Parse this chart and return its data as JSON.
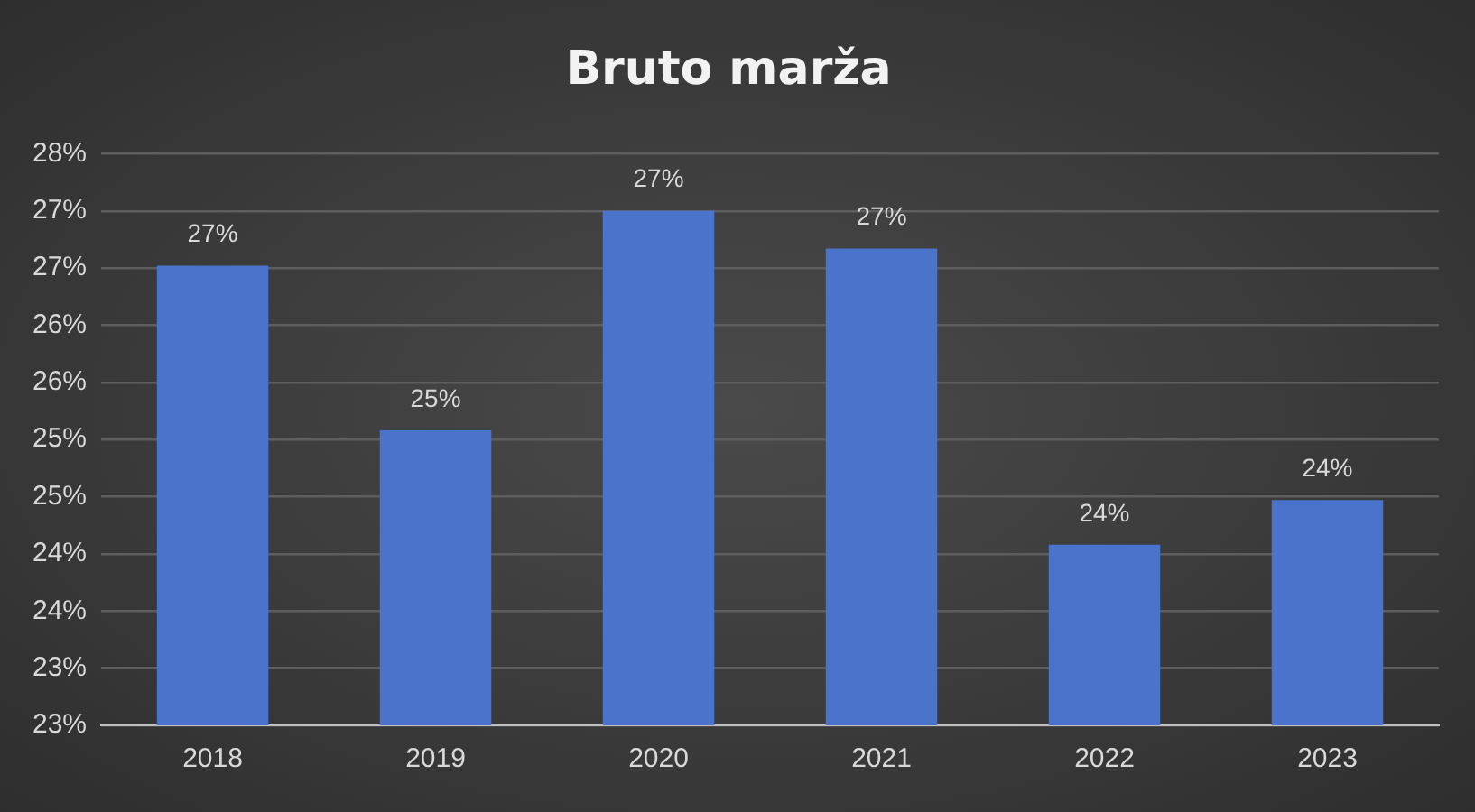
{
  "chart_data": {
    "type": "bar",
    "title": "Bruto marža",
    "categories": [
      "2018",
      "2019",
      "2020",
      "2021",
      "2022",
      "2023"
    ],
    "values": [
      26.52,
      25.08,
      27.0,
      26.67,
      24.08,
      24.47
    ],
    "value_labels": [
      "27%",
      "25%",
      "27%",
      "27%",
      "24%",
      "24%"
    ],
    "color": "#4a74cc",
    "ylim": [
      22.5,
      27.5
    ],
    "yticks": [
      {
        "value": 22.5,
        "label": "23%"
      },
      {
        "value": 23,
        "label": "23%"
      },
      {
        "value": 23.5,
        "label": "24%"
      },
      {
        "value": 24,
        "label": "24%"
      },
      {
        "value": 24.5,
        "label": "25%"
      },
      {
        "value": 25,
        "label": "25%"
      },
      {
        "value": 25.5,
        "label": "26%"
      },
      {
        "value": 26,
        "label": "26%"
      },
      {
        "value": 26.5,
        "label": "27%"
      },
      {
        "value": 27,
        "label": "27%"
      },
      {
        "value": 27.5,
        "label": "28%"
      }
    ],
    "grid": "y",
    "legend": false
  }
}
